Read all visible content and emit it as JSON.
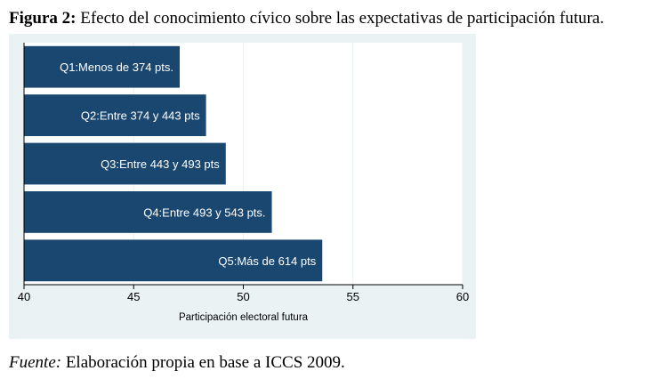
{
  "caption": {
    "label": "Figura  2:",
    "text": "Efecto del conocimiento cívico sobre las expectativas de participación futura."
  },
  "source": {
    "label": "Fuente:",
    "text": "Elaboración propia en base a ICCS 2009."
  },
  "colors": {
    "bar": "#1a476f",
    "plot_background": "#ffffff",
    "figure_background": "#eaf2f3",
    "grid": "#eaf2f3"
  },
  "chart_data": {
    "type": "bar",
    "orientation": "horizontal",
    "categories": [
      "Q1:Menos de 374 pts.",
      "Q2:Entre 374 y 443 pts",
      "Q3:Entre 443 y 493 pts",
      "Q4:Entre 493 y 543 pts.",
      "Q5:Más de 614 pts"
    ],
    "values": [
      47.1,
      48.3,
      49.2,
      51.3,
      53.6
    ],
    "xlabel": "Participación electoral futura",
    "ylabel": "",
    "xlim": [
      40,
      60
    ],
    "xticks": [
      40,
      45,
      50,
      55,
      60
    ],
    "grid": true,
    "legend": "none",
    "labels_inside_bars": true
  }
}
